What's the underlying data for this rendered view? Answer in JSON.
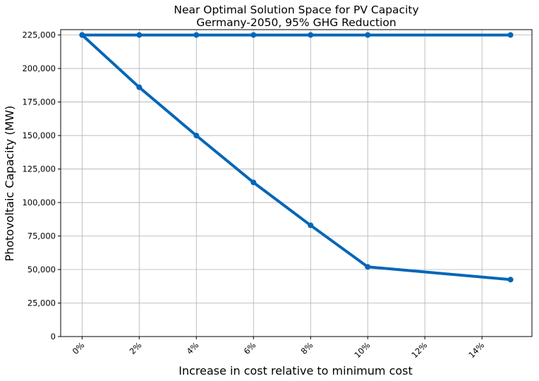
{
  "chart_data": {
    "type": "line",
    "title": [
      "Near Optimal Solution Space for PV Capacity",
      "Germany-2050, 95% GHG Reduction"
    ],
    "xlabel": "Increase in cost relative to minimum cost",
    "ylabel": "Photovoltaic Capacity (MW)",
    "x_unit": "percent",
    "xlim": [
      -0.75,
      15.75
    ],
    "ylim": [
      0,
      229000
    ],
    "xticks": [
      0,
      2,
      4,
      6,
      8,
      10,
      12,
      14
    ],
    "xtick_labels": [
      "0%",
      "2%",
      "4%",
      "6%",
      "8%",
      "10%",
      "12%",
      "14%"
    ],
    "yticks": [
      0,
      25000,
      50000,
      75000,
      100000,
      125000,
      150000,
      175000,
      200000,
      225000
    ],
    "ytick_labels": [
      "0",
      "25,000",
      "50,000",
      "75,000",
      "100,000",
      "125,000",
      "150,000",
      "175,000",
      "200,000",
      "225,000"
    ],
    "grid": true,
    "color": "#0066b8",
    "series": [
      {
        "x": [
          0,
          2,
          4,
          6,
          8,
          10,
          15
        ],
        "values": [
          225000,
          225000,
          225000,
          225000,
          225000,
          225000,
          225000
        ]
      },
      {
        "x": [
          0,
          2,
          4,
          6,
          8,
          10,
          15
        ],
        "values": [
          225000,
          186000,
          150000,
          115000,
          83000,
          52000,
          42500
        ]
      }
    ]
  }
}
